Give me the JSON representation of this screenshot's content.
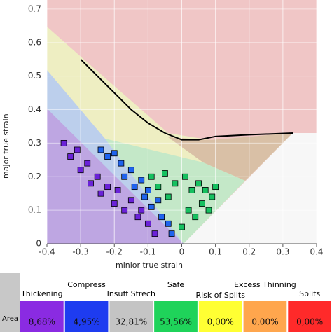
{
  "chart_data": {
    "type": "scatter",
    "xlabel": "minior true strain",
    "ylabel": "major true strain",
    "xlim": [
      -0.4,
      0.4
    ],
    "ylim": [
      0,
      0.727
    ],
    "xticks": [
      -0.4,
      -0.3,
      -0.2,
      -0.1,
      0,
      0.1,
      0.2,
      0.3,
      0.4
    ],
    "yticks": [
      0,
      0.1,
      0.2,
      0.3,
      0.4,
      0.5,
      0.6,
      0.7
    ],
    "grid": true,
    "curve": {
      "color": "#000000",
      "x": [
        -0.3,
        -0.25,
        -0.2,
        -0.15,
        -0.1,
        -0.05,
        0,
        0.05,
        0.1,
        0.2,
        0.33
      ],
      "y": [
        0.55,
        0.5,
        0.45,
        0.4,
        0.36,
        0.33,
        0.31,
        0.31,
        0.32,
        0.325,
        0.33
      ]
    },
    "series": [
      {
        "name": "Thickening",
        "color": "#6a22d8",
        "x": [
          -0.35,
          -0.33,
          -0.31,
          -0.3,
          -0.28,
          -0.27,
          -0.25,
          -0.24,
          -0.22,
          -0.2,
          -0.19,
          -0.17,
          -0.15,
          -0.13,
          -0.12,
          -0.1,
          -0.08
        ],
        "y": [
          0.3,
          0.26,
          0.28,
          0.22,
          0.24,
          0.18,
          0.2,
          0.15,
          0.17,
          0.12,
          0.16,
          0.1,
          0.13,
          0.08,
          0.1,
          0.06,
          0.03
        ]
      },
      {
        "name": "Compress",
        "color": "#1f63ee",
        "x": [
          -0.24,
          -0.22,
          -0.2,
          -0.18,
          -0.17,
          -0.15,
          -0.14,
          -0.12,
          -0.11,
          -0.1,
          -0.09,
          -0.07,
          -0.06,
          -0.04,
          -0.03
        ],
        "y": [
          0.28,
          0.26,
          0.27,
          0.24,
          0.2,
          0.22,
          0.17,
          0.19,
          0.14,
          0.16,
          0.11,
          0.13,
          0.08,
          0.06,
          0.03
        ]
      },
      {
        "name": "Safe",
        "color": "#16c060",
        "x": [
          -0.09,
          -0.07,
          -0.05,
          -0.04,
          -0.02,
          0,
          0.01,
          0.02,
          0.03,
          0.04,
          0.05,
          0.06,
          0.07,
          0.08,
          0.09,
          0.1
        ],
        "y": [
          0.2,
          0.17,
          0.21,
          0.14,
          0.18,
          0.05,
          0.2,
          0.1,
          0.16,
          0.08,
          0.18,
          0.12,
          0.16,
          0.1,
          0.14,
          0.17
        ]
      }
    ]
  },
  "table": {
    "row_label": "Area",
    "columns": [
      {
        "label": "Thickening",
        "value": "8,68%",
        "color": "#8a2be2"
      },
      {
        "label": "Compress",
        "value": "4,95%",
        "color": "#1e3cf0"
      },
      {
        "label": "Insuff Strech",
        "value": "32,81%",
        "color": "#c4c4c4"
      },
      {
        "label": "Safe",
        "value": "53,56%",
        "color": "#1fd35a"
      },
      {
        "label": "Risk of Splits",
        "value": "0,00%",
        "color": "#ffff33"
      },
      {
        "label": "Excess Thinning",
        "value": "0,00%",
        "color": "#ffa64d"
      },
      {
        "label": "Splits",
        "value": "0,00%",
        "color": "#ff2a2a"
      }
    ]
  }
}
